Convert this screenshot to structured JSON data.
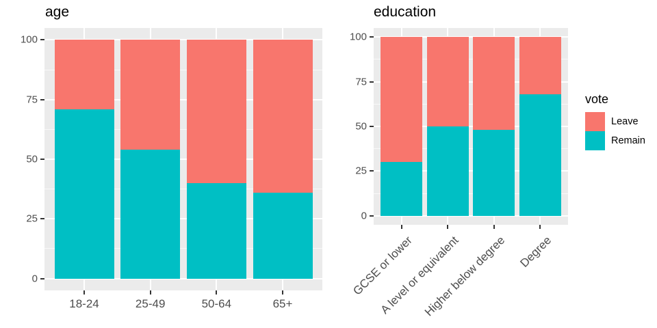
{
  "figure": {
    "background": "#FFFFFF"
  },
  "colors": {
    "leave": "#F8766D",
    "remain": "#00BFC4",
    "panel_background": "#EBEBEB",
    "gridline": "#FFFFFF",
    "axis_text": "#4D4D4D",
    "title_text": "#000000"
  },
  "legend": {
    "title": "vote",
    "position": "right",
    "items": [
      {
        "label": "Leave",
        "color": "#F8766D"
      },
      {
        "label": "Remain",
        "color": "#00BFC4"
      }
    ]
  },
  "chart_data": [
    {
      "type": "bar",
      "stacked": true,
      "title": "age",
      "categories": [
        "18-24",
        "25-49",
        "50-64",
        "65+"
      ],
      "series": [
        {
          "name": "Leave",
          "color": "#F8766D",
          "values": [
            29,
            46,
            60,
            64
          ]
        },
        {
          "name": "Remain",
          "color": "#00BFC4",
          "values": [
            71,
            54,
            40,
            36
          ]
        }
      ],
      "xlabel": "",
      "ylabel": "",
      "ylim": [
        0,
        100
      ],
      "yticks": [
        0,
        25,
        50,
        75,
        100
      ],
      "grid": true,
      "x_label_rotation": 0
    },
    {
      "type": "bar",
      "stacked": true,
      "title": "education",
      "categories": [
        "GCSE or lower",
        "A level or equivalent",
        "Higher below degree",
        "Degree"
      ],
      "series": [
        {
          "name": "Leave",
          "color": "#F8766D",
          "values": [
            70,
            50,
            52,
            32
          ]
        },
        {
          "name": "Remain",
          "color": "#00BFC4",
          "values": [
            30,
            50,
            48,
            68
          ]
        }
      ],
      "xlabel": "",
      "ylabel": "",
      "ylim": [
        0,
        100
      ],
      "yticks": [
        0,
        25,
        50,
        75,
        100
      ],
      "grid": true,
      "x_label_rotation": 45
    }
  ]
}
